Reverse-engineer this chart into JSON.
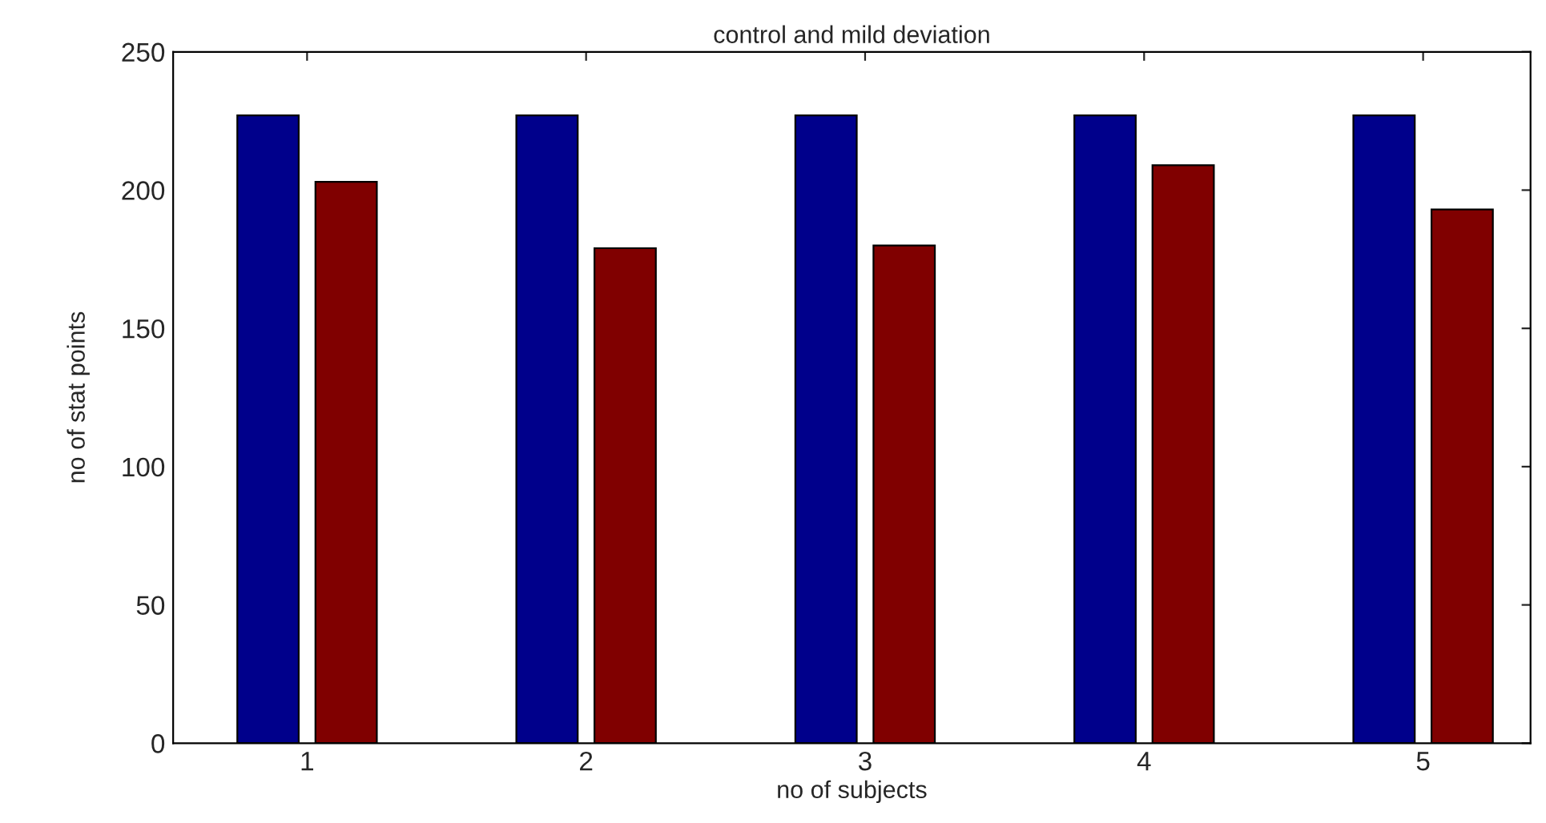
{
  "chart_data": {
    "type": "bar",
    "title": "control and mild deviation",
    "xlabel": "no of subjects",
    "ylabel": "no of stat points",
    "categories": [
      "1",
      "2",
      "3",
      "4",
      "5"
    ],
    "series": [
      {
        "color": "#00008b",
        "values": [
          227,
          227,
          227,
          227,
          227
        ]
      },
      {
        "color": "#800000",
        "values": [
          203,
          179,
          180,
          209,
          193
        ]
      }
    ],
    "ylim": [
      0,
      250
    ],
    "yticks": [
      0,
      50,
      100,
      150,
      200,
      250
    ],
    "grid": false,
    "legend": false
  }
}
